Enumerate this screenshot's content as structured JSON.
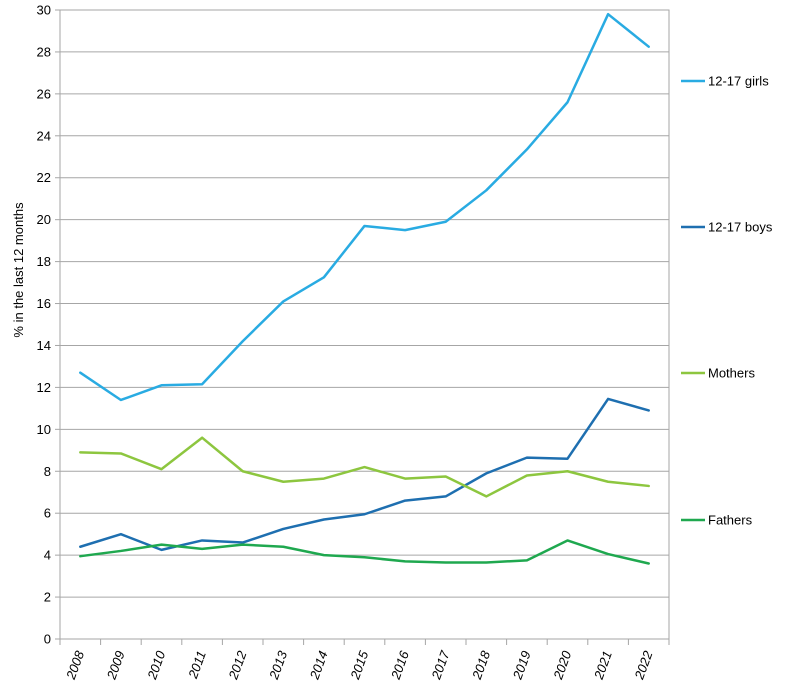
{
  "chart_data": {
    "type": "line",
    "title": "",
    "xlabel": "",
    "ylabel": "% in the last 12 months",
    "ylim": [
      0,
      30
    ],
    "ytick_step": 2,
    "grid": true,
    "legend_position": "right",
    "categories": [
      "2008",
      "2009",
      "2010",
      "2011",
      "2012",
      "2013",
      "2014",
      "2015",
      "2016",
      "2017",
      "2018",
      "2019",
      "2020",
      "2021",
      "2022"
    ],
    "yticks": [
      "0",
      "2",
      "4",
      "6",
      "8",
      "10",
      "12",
      "14",
      "16",
      "18",
      "20",
      "22",
      "24",
      "26",
      "28",
      "30"
    ],
    "series": [
      {
        "name": "12-17 girls",
        "color": "#29ABE2",
        "values": [
          12.7,
          11.4,
          12.1,
          12.15,
          14.2,
          16.1,
          17.25,
          19.7,
          19.5,
          19.9,
          21.4,
          23.35,
          25.6,
          29.8,
          28.25
        ]
      },
      {
        "name": "12-17 boys",
        "color": "#1E6FB0",
        "values": [
          4.4,
          5.0,
          4.25,
          4.7,
          4.6,
          5.25,
          5.7,
          5.95,
          6.6,
          6.8,
          7.9,
          8.65,
          8.6,
          11.45,
          10.9
        ]
      },
      {
        "name": "Mothers",
        "color": "#8DC63F",
        "values": [
          8.9,
          8.85,
          8.1,
          9.6,
          8.0,
          7.5,
          7.65,
          8.2,
          7.65,
          7.75,
          6.8,
          7.8,
          8.0,
          7.5,
          7.3
        ]
      },
      {
        "name": "Fathers",
        "color": "#1FA84F",
        "values": [
          3.95,
          4.2,
          4.5,
          4.3,
          4.5,
          4.4,
          4.0,
          3.9,
          3.7,
          3.65,
          3.65,
          3.75,
          4.7,
          4.05,
          3.6
        ]
      }
    ]
  }
}
